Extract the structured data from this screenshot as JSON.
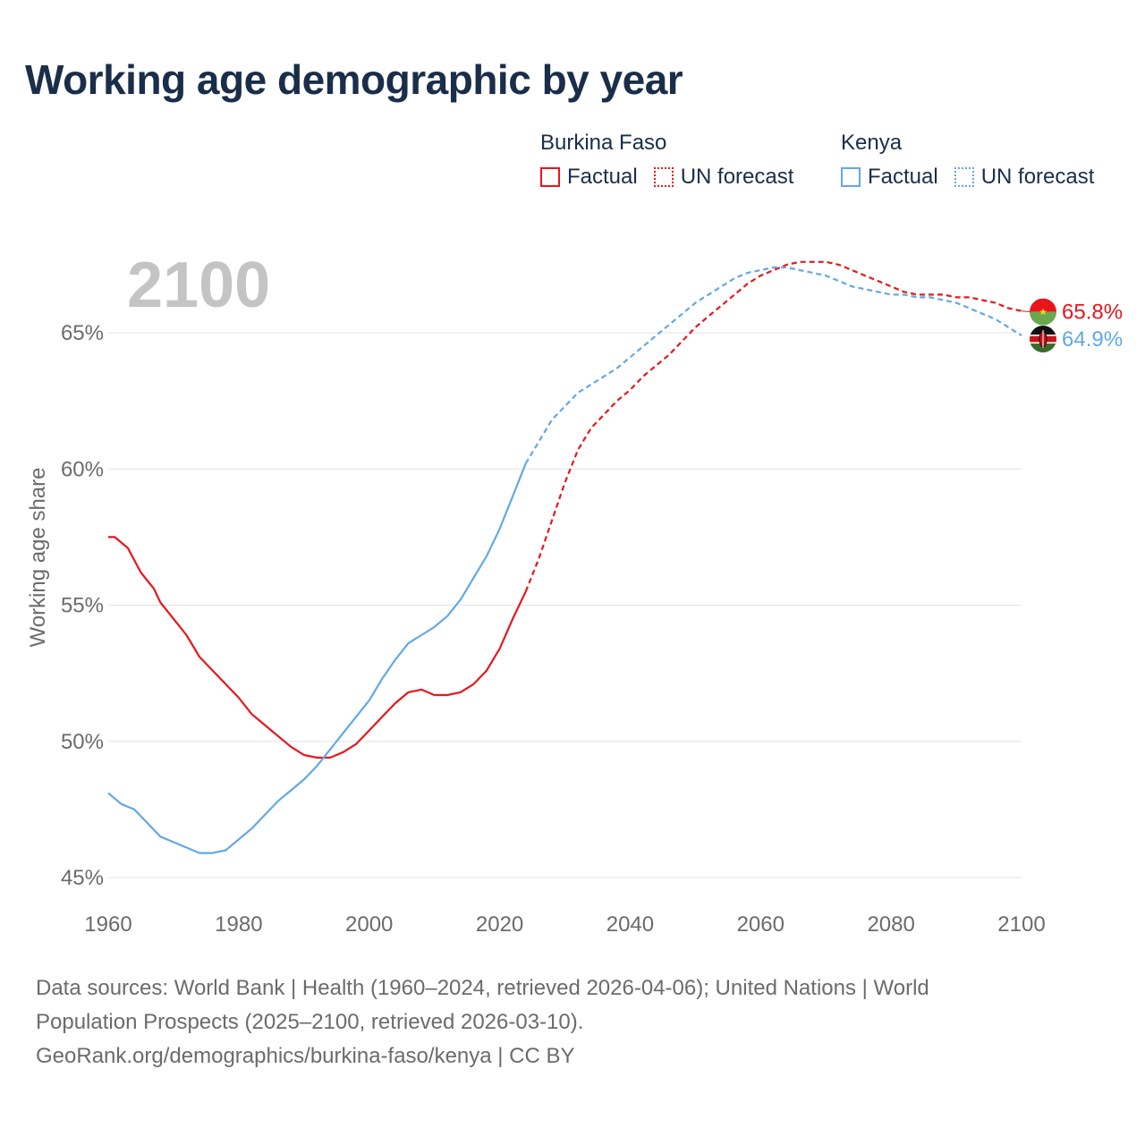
{
  "title": "Working age demographic by year",
  "legend": {
    "groups": [
      {
        "country": "Burkina Faso",
        "factual_label": "Factual",
        "forecast_label": "UN forecast",
        "color": "#e8161b"
      },
      {
        "country": "Kenya",
        "factual_label": "Factual",
        "forecast_label": "UN forecast",
        "color": "#63a8e6"
      }
    ]
  },
  "year_watermark": "2100",
  "footer": {
    "line1": "Data sources: World Bank | Health (1960–2024, retrieved 2026-04-06); United Nations | World",
    "line2": "Population Prospects (2025–2100, retrieved 2026-03-10).",
    "line3": "GeoRank.org/demographics/burkina-faso/kenya | CC BY"
  },
  "chart_data": {
    "type": "line",
    "title": "Working age demographic by year",
    "xlabel": "",
    "ylabel": "Working age share",
    "xlim": [
      1960,
      2100
    ],
    "ylim": [
      45,
      68.5
    ],
    "x_ticks": [
      "1960",
      "1980",
      "2000",
      "2020",
      "2040",
      "2060",
      "2080",
      "2100"
    ],
    "x_tick_values": [
      1960,
      1980,
      2000,
      2020,
      2040,
      2060,
      2080,
      2100
    ],
    "y_ticks": [
      "45%",
      "50%",
      "55%",
      "60%",
      "65%"
    ],
    "y_tick_values": [
      45,
      50,
      55,
      60,
      65
    ],
    "factual_end_year": 2024,
    "series": [
      {
        "name": "Burkina Faso",
        "color": "#e8161b",
        "end_label": "65.8%",
        "flag": "burkina-faso-flag",
        "points": [
          [
            1960,
            57.5
          ],
          [
            1961,
            57.5
          ],
          [
            1963,
            57.1
          ],
          [
            1965,
            56.2
          ],
          [
            1967,
            55.6
          ],
          [
            1968,
            55.1
          ],
          [
            1970,
            54.5
          ],
          [
            1972,
            53.9
          ],
          [
            1974,
            53.1
          ],
          [
            1976,
            52.6
          ],
          [
            1978,
            52.1
          ],
          [
            1980,
            51.6
          ],
          [
            1982,
            51.0
          ],
          [
            1984,
            50.6
          ],
          [
            1986,
            50.2
          ],
          [
            1988,
            49.8
          ],
          [
            1990,
            49.5
          ],
          [
            1992,
            49.4
          ],
          [
            1994,
            49.4
          ],
          [
            1996,
            49.6
          ],
          [
            1998,
            49.9
          ],
          [
            2000,
            50.4
          ],
          [
            2002,
            50.9
          ],
          [
            2004,
            51.4
          ],
          [
            2006,
            51.8
          ],
          [
            2008,
            51.9
          ],
          [
            2010,
            51.7
          ],
          [
            2012,
            51.7
          ],
          [
            2014,
            51.8
          ],
          [
            2016,
            52.1
          ],
          [
            2018,
            52.6
          ],
          [
            2020,
            53.4
          ],
          [
            2022,
            54.5
          ],
          [
            2024,
            55.5
          ],
          [
            2026,
            56.7
          ],
          [
            2028,
            58.1
          ],
          [
            2030,
            59.5
          ],
          [
            2032,
            60.7
          ],
          [
            2034,
            61.5
          ],
          [
            2036,
            62.0
          ],
          [
            2038,
            62.5
          ],
          [
            2040,
            62.9
          ],
          [
            2042,
            63.4
          ],
          [
            2044,
            63.8
          ],
          [
            2046,
            64.2
          ],
          [
            2048,
            64.7
          ],
          [
            2050,
            65.2
          ],
          [
            2052,
            65.6
          ],
          [
            2054,
            66.0
          ],
          [
            2056,
            66.4
          ],
          [
            2058,
            66.8
          ],
          [
            2060,
            67.1
          ],
          [
            2062,
            67.3
          ],
          [
            2064,
            67.5
          ],
          [
            2066,
            67.6
          ],
          [
            2068,
            67.6
          ],
          [
            2070,
            67.6
          ],
          [
            2072,
            67.5
          ],
          [
            2074,
            67.3
          ],
          [
            2076,
            67.1
          ],
          [
            2078,
            66.9
          ],
          [
            2080,
            66.7
          ],
          [
            2082,
            66.5
          ],
          [
            2084,
            66.4
          ],
          [
            2086,
            66.4
          ],
          [
            2088,
            66.4
          ],
          [
            2090,
            66.3
          ],
          [
            2092,
            66.3
          ],
          [
            2094,
            66.2
          ],
          [
            2096,
            66.1
          ],
          [
            2098,
            65.9
          ],
          [
            2100,
            65.8
          ]
        ]
      },
      {
        "name": "Kenya",
        "color": "#63a8e6",
        "end_label": "64.9%",
        "flag": "kenya-flag",
        "points": [
          [
            1960,
            48.1
          ],
          [
            1962,
            47.7
          ],
          [
            1964,
            47.5
          ],
          [
            1966,
            47.0
          ],
          [
            1968,
            46.5
          ],
          [
            1970,
            46.3
          ],
          [
            1972,
            46.1
          ],
          [
            1974,
            45.9
          ],
          [
            1976,
            45.9
          ],
          [
            1978,
            46.0
          ],
          [
            1980,
            46.4
          ],
          [
            1982,
            46.8
          ],
          [
            1984,
            47.3
          ],
          [
            1986,
            47.8
          ],
          [
            1988,
            48.2
          ],
          [
            1990,
            48.6
          ],
          [
            1992,
            49.1
          ],
          [
            1994,
            49.7
          ],
          [
            1996,
            50.3
          ],
          [
            1998,
            50.9
          ],
          [
            2000,
            51.5
          ],
          [
            2002,
            52.3
          ],
          [
            2004,
            53.0
          ],
          [
            2006,
            53.6
          ],
          [
            2008,
            53.9
          ],
          [
            2010,
            54.2
          ],
          [
            2012,
            54.6
          ],
          [
            2014,
            55.2
          ],
          [
            2016,
            56.0
          ],
          [
            2018,
            56.8
          ],
          [
            2020,
            57.8
          ],
          [
            2022,
            59.0
          ],
          [
            2024,
            60.2
          ],
          [
            2026,
            61.0
          ],
          [
            2028,
            61.8
          ],
          [
            2030,
            62.3
          ],
          [
            2032,
            62.8
          ],
          [
            2034,
            63.1
          ],
          [
            2036,
            63.4
          ],
          [
            2038,
            63.7
          ],
          [
            2040,
            64.1
          ],
          [
            2042,
            64.5
          ],
          [
            2044,
            64.9
          ],
          [
            2046,
            65.3
          ],
          [
            2048,
            65.7
          ],
          [
            2050,
            66.1
          ],
          [
            2052,
            66.4
          ],
          [
            2054,
            66.7
          ],
          [
            2056,
            67.0
          ],
          [
            2058,
            67.2
          ],
          [
            2060,
            67.3
          ],
          [
            2062,
            67.4
          ],
          [
            2064,
            67.4
          ],
          [
            2066,
            67.3
          ],
          [
            2068,
            67.2
          ],
          [
            2070,
            67.1
          ],
          [
            2072,
            66.9
          ],
          [
            2074,
            66.7
          ],
          [
            2076,
            66.6
          ],
          [
            2078,
            66.5
          ],
          [
            2080,
            66.4
          ],
          [
            2082,
            66.4
          ],
          [
            2084,
            66.3
          ],
          [
            2086,
            66.3
          ],
          [
            2088,
            66.2
          ],
          [
            2090,
            66.1
          ],
          [
            2092,
            65.9
          ],
          [
            2094,
            65.7
          ],
          [
            2096,
            65.5
          ],
          [
            2098,
            65.2
          ],
          [
            2100,
            64.9
          ]
        ]
      }
    ]
  }
}
